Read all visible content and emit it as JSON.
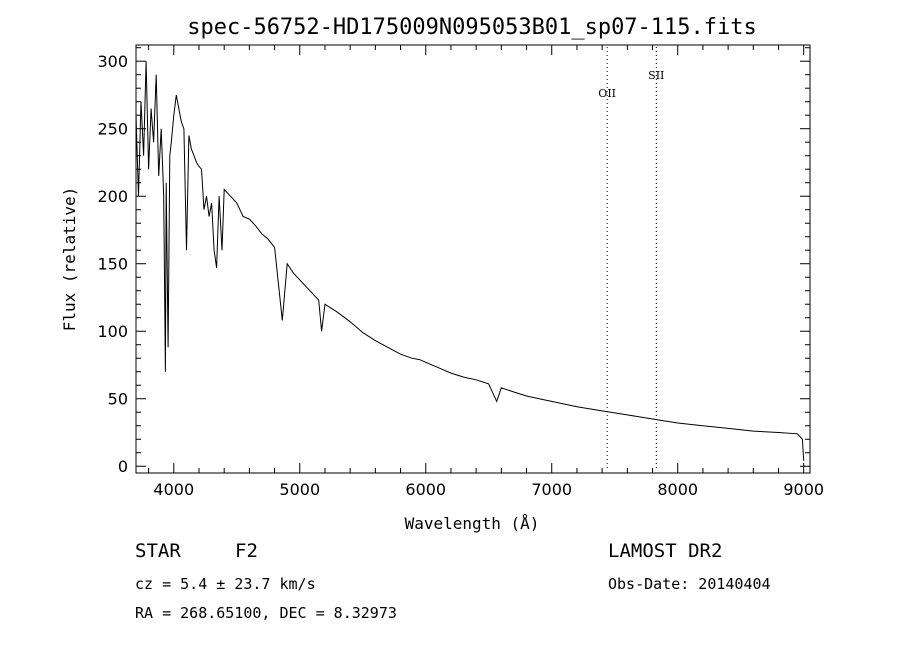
{
  "chart_data": {
    "type": "line",
    "title": "spec-56752-HD175009N095053B01_sp07-115.fits",
    "xlabel": "Wavelength (Å)",
    "ylabel": "Flux (relative)",
    "xlim": [
      3700,
      9050
    ],
    "ylim": [
      -5,
      312
    ],
    "xticks": [
      4000,
      5000,
      6000,
      7000,
      8000,
      9000
    ],
    "yticks": [
      0,
      50,
      100,
      150,
      200,
      250,
      300
    ],
    "series": [
      {
        "x": [
          3700,
          3720,
          3740,
          3760,
          3780,
          3800,
          3820,
          3840,
          3860,
          3880,
          3900,
          3920,
          3933,
          3940,
          3955,
          3968,
          3980,
          4000,
          4020,
          4040,
          4060,
          4080,
          4101,
          4120,
          4140,
          4160,
          4180,
          4200,
          4220,
          4240,
          4260,
          4280,
          4300,
          4320,
          4340,
          4360,
          4383,
          4400,
          4450,
          4500,
          4550,
          4600,
          4650,
          4700,
          4750,
          4800,
          4861,
          4900,
          4950,
          5000,
          5050,
          5100,
          5150,
          5173,
          5200,
          5250,
          5300,
          5400,
          5500,
          5600,
          5700,
          5800,
          5890,
          5950,
          6000,
          6100,
          6200,
          6300,
          6400,
          6500,
          6563,
          6600,
          6700,
          6800,
          6900,
          7000,
          7200,
          7400,
          7600,
          7800,
          8000,
          8200,
          8400,
          8600,
          8800,
          8950,
          8990,
          9000
        ],
        "y": [
          260,
          200,
          270,
          230,
          300,
          220,
          265,
          240,
          290,
          215,
          250,
          200,
          70,
          210,
          88,
          230,
          240,
          260,
          275,
          265,
          255,
          250,
          160,
          245,
          235,
          230,
          225,
          222,
          220,
          190,
          200,
          185,
          195,
          160,
          147,
          200,
          160,
          205,
          200,
          195,
          185,
          183,
          178,
          172,
          168,
          162,
          108,
          150,
          143,
          138,
          133,
          128,
          123,
          100,
          120,
          117,
          114,
          107,
          99,
          93,
          88,
          83,
          80,
          79,
          77,
          73,
          69,
          66,
          64,
          61,
          48,
          58,
          55,
          52,
          50,
          48,
          44,
          41,
          38,
          35,
          32,
          30,
          28,
          26,
          25,
          24,
          20,
          4
        ]
      }
    ],
    "line_markers": [
      {
        "label": "OII",
        "x": 7440
      },
      {
        "label": "SII",
        "x": 7830
      }
    ]
  },
  "info": {
    "object_class": "STAR",
    "subclass": "F2",
    "survey": "LAMOST DR2",
    "redshift": "cz =  5.4 ± 23.7 km/s",
    "obs_date": "Obs-Date: 20140404",
    "coords": "RA = 268.65100, DEC =   8.32973"
  }
}
